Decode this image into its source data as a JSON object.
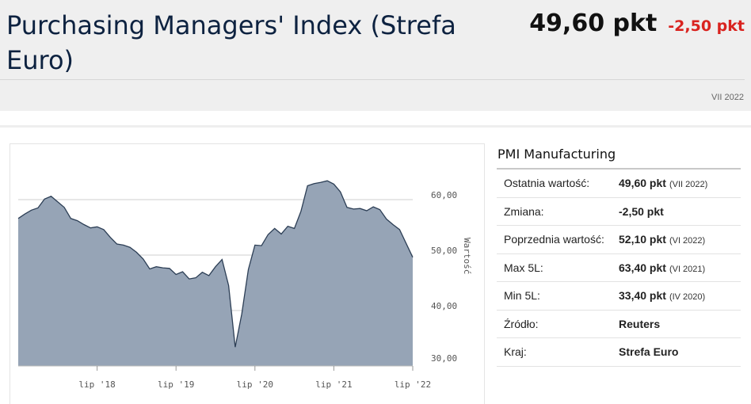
{
  "header": {
    "title": "Purchasing Managers' Index (Strefa Euro)",
    "value": "49,60 pkt",
    "change": "-2,50 pkt",
    "period": "VII 2022",
    "change_color": "#d9231f"
  },
  "chart_data": {
    "type": "area",
    "x_ticks": [
      "lip '18",
      "lip '19",
      "lip '20",
      "lip '21",
      "lip '22"
    ],
    "y_ticks": [
      "60,00",
      "50,00",
      "40,00",
      "30,00"
    ],
    "ylabel": "Wartość",
    "ylim": [
      30,
      63
    ],
    "grid": true,
    "fill_color": "#96a4b6",
    "line_color": "#2c3e55",
    "x": [
      "2017-07",
      "2017-08",
      "2017-09",
      "2017-10",
      "2017-11",
      "2017-12",
      "2018-01",
      "2018-02",
      "2018-03",
      "2018-04",
      "2018-05",
      "2018-06",
      "2018-07",
      "2018-08",
      "2018-09",
      "2018-10",
      "2018-11",
      "2018-12",
      "2019-01",
      "2019-02",
      "2019-03",
      "2019-04",
      "2019-05",
      "2019-06",
      "2019-07",
      "2019-08",
      "2019-09",
      "2019-10",
      "2019-11",
      "2019-12",
      "2020-01",
      "2020-02",
      "2020-03",
      "2020-04",
      "2020-05",
      "2020-06",
      "2020-07",
      "2020-08",
      "2020-09",
      "2020-10",
      "2020-11",
      "2020-12",
      "2021-01",
      "2021-02",
      "2021-03",
      "2021-04",
      "2021-05",
      "2021-06",
      "2021-07",
      "2021-08",
      "2021-09",
      "2021-10",
      "2021-11",
      "2021-12",
      "2022-01",
      "2022-02",
      "2022-03",
      "2022-04",
      "2022-05",
      "2022-06",
      "2022-07"
    ],
    "values": [
      56.6,
      57.4,
      58.1,
      58.5,
      60.1,
      60.6,
      59.6,
      58.6,
      56.6,
      56.2,
      55.5,
      54.9,
      55.1,
      54.6,
      53.2,
      52.0,
      51.8,
      51.4,
      50.5,
      49.3,
      47.5,
      47.9,
      47.7,
      47.6,
      46.5,
      47.0,
      45.7,
      45.9,
      46.9,
      46.3,
      47.9,
      49.2,
      44.5,
      33.4,
      39.4,
      47.4,
      51.8,
      51.7,
      53.7,
      54.8,
      53.8,
      55.2,
      54.8,
      57.9,
      62.5,
      62.9,
      63.1,
      63.4,
      62.8,
      61.4,
      58.6,
      58.3,
      58.4,
      58.0,
      58.7,
      58.2,
      56.5,
      55.5,
      54.6,
      52.1,
      49.6
    ]
  },
  "info": {
    "title": "PMI Manufacturing",
    "rows": [
      {
        "label": "Ostatnia wartość:",
        "value": "49,60 pkt",
        "sub": "(VII 2022)"
      },
      {
        "label": "Zmiana:",
        "value": "-2,50 pkt",
        "sub": ""
      },
      {
        "label": "Poprzednia wartość:",
        "value": "52,10 pkt",
        "sub": "(VI 2022)"
      },
      {
        "label": "Max 5L:",
        "value": "63,40 pkt",
        "sub": "(VI 2021)"
      },
      {
        "label": "Min 5L:",
        "value": "33,40 pkt",
        "sub": "(IV 2020)"
      },
      {
        "label": "Źródło:",
        "value": "Reuters",
        "sub": ""
      },
      {
        "label": "Kraj:",
        "value": "Strefa Euro",
        "sub": ""
      }
    ]
  }
}
